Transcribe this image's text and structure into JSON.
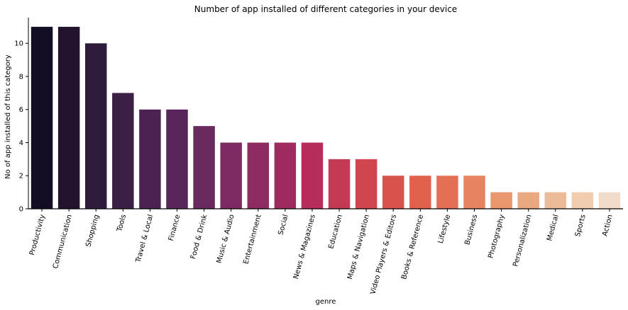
{
  "chart_data": {
    "type": "bar",
    "title": "Number of app installed of different categories in your device",
    "xlabel": "genre",
    "ylabel": "No of app installed of this category",
    "ylim": [
      0,
      11.55
    ],
    "yticks": [
      0,
      2,
      4,
      6,
      8,
      10
    ],
    "categories": [
      "Productivity",
      "Communication",
      "Shopping",
      "Tools",
      "Travel & Local",
      "Finance",
      "Food & Drink",
      "Music & Audio",
      "Entertainment",
      "Social",
      "News & Magazines",
      "Education",
      "Maps & Navigation",
      "Video Players & Editors",
      "Books & Reference",
      "Lifestyle",
      "Business",
      "Photography",
      "Personalization",
      "Medical",
      "Sports",
      "Action"
    ],
    "values": [
      11,
      11,
      10,
      7,
      6,
      6,
      5,
      4,
      4,
      4,
      4,
      3,
      3,
      2,
      2,
      2,
      2,
      1,
      1,
      1,
      1,
      1
    ],
    "colors": [
      "#140e24",
      "#22142f",
      "#2f1b3c",
      "#3c1f45",
      "#4a2350",
      "#57265a",
      "#6a2a5e",
      "#7d2b62",
      "#8e2b62",
      "#9e2a5f",
      "#b62c5a",
      "#c43a54",
      "#d0454e",
      "#d8534b",
      "#e0614c",
      "#e37054",
      "#e6845f",
      "#e8966b",
      "#eaa880",
      "#edbb98",
      "#f0ccb1",
      "#f2dbc8"
    ],
    "grid": false,
    "legend": "none"
  }
}
